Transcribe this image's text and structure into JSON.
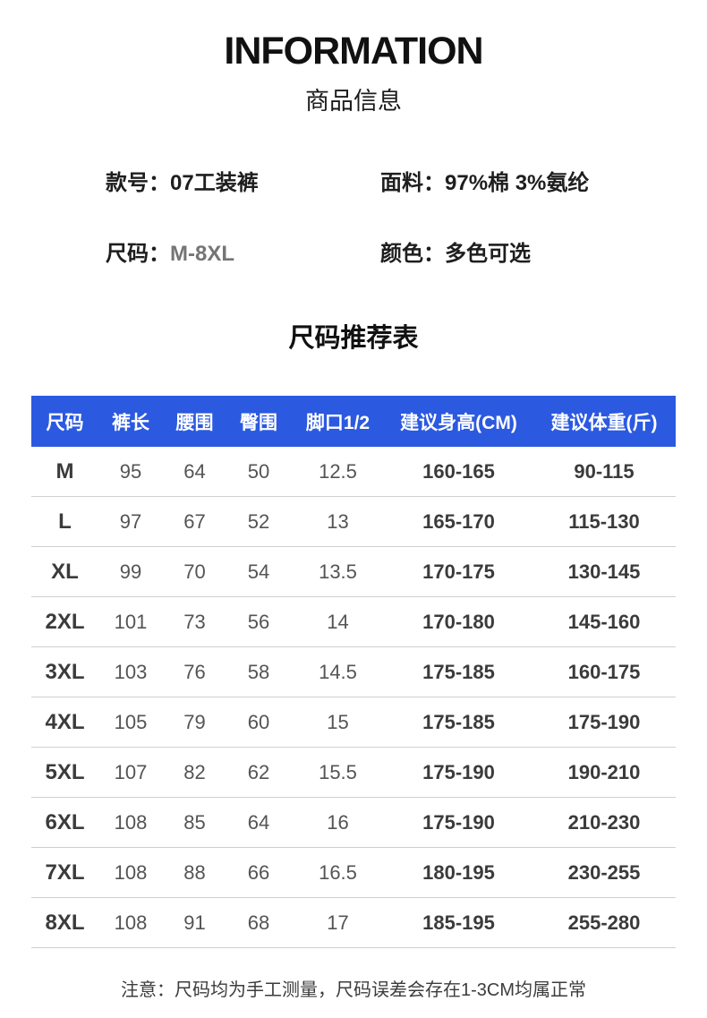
{
  "header": {
    "title": "INFORMATION",
    "subtitle": "商品信息"
  },
  "product_info": {
    "items": [
      {
        "label": "款号：",
        "value": "07工装裤"
      },
      {
        "label": "面料：",
        "value": "97%棉 3%氨纶"
      },
      {
        "label": "尺码：",
        "value": "M-8XL"
      },
      {
        "label": "颜色：",
        "value": "多色可选"
      }
    ]
  },
  "size_table": {
    "title": "尺码推荐表",
    "headers": [
      "尺码",
      "裤长",
      "腰围",
      "臀围",
      "脚口1/2",
      "建议身高(CM)",
      "建议体重(斤)"
    ],
    "rows": [
      [
        "M",
        "95",
        "64",
        "50",
        "12.5",
        "160-165",
        "90-115"
      ],
      [
        "L",
        "97",
        "67",
        "52",
        "13",
        "165-170",
        "115-130"
      ],
      [
        "XL",
        "99",
        "70",
        "54",
        "13.5",
        "170-175",
        "130-145"
      ],
      [
        "2XL",
        "101",
        "73",
        "56",
        "14",
        "170-180",
        "145-160"
      ],
      [
        "3XL",
        "103",
        "76",
        "58",
        "14.5",
        "175-185",
        "160-175"
      ],
      [
        "4XL",
        "105",
        "79",
        "60",
        "15",
        "175-185",
        "175-190"
      ],
      [
        "5XL",
        "107",
        "82",
        "62",
        "15.5",
        "175-190",
        "190-210"
      ],
      [
        "6XL",
        "108",
        "85",
        "64",
        "16",
        "175-190",
        "210-230"
      ],
      [
        "7XL",
        "108",
        "88",
        "66",
        "16.5",
        "180-195",
        "230-255"
      ],
      [
        "8XL",
        "108",
        "91",
        "68",
        "17",
        "185-195",
        "255-280"
      ]
    ]
  },
  "footer": {
    "note": "注意：尺码均为手工测量，尺码误差会存在1-3CM均属正常"
  },
  "colors": {
    "table_header_bg": "#2b59e0",
    "table_header_text": "#ffffff"
  }
}
